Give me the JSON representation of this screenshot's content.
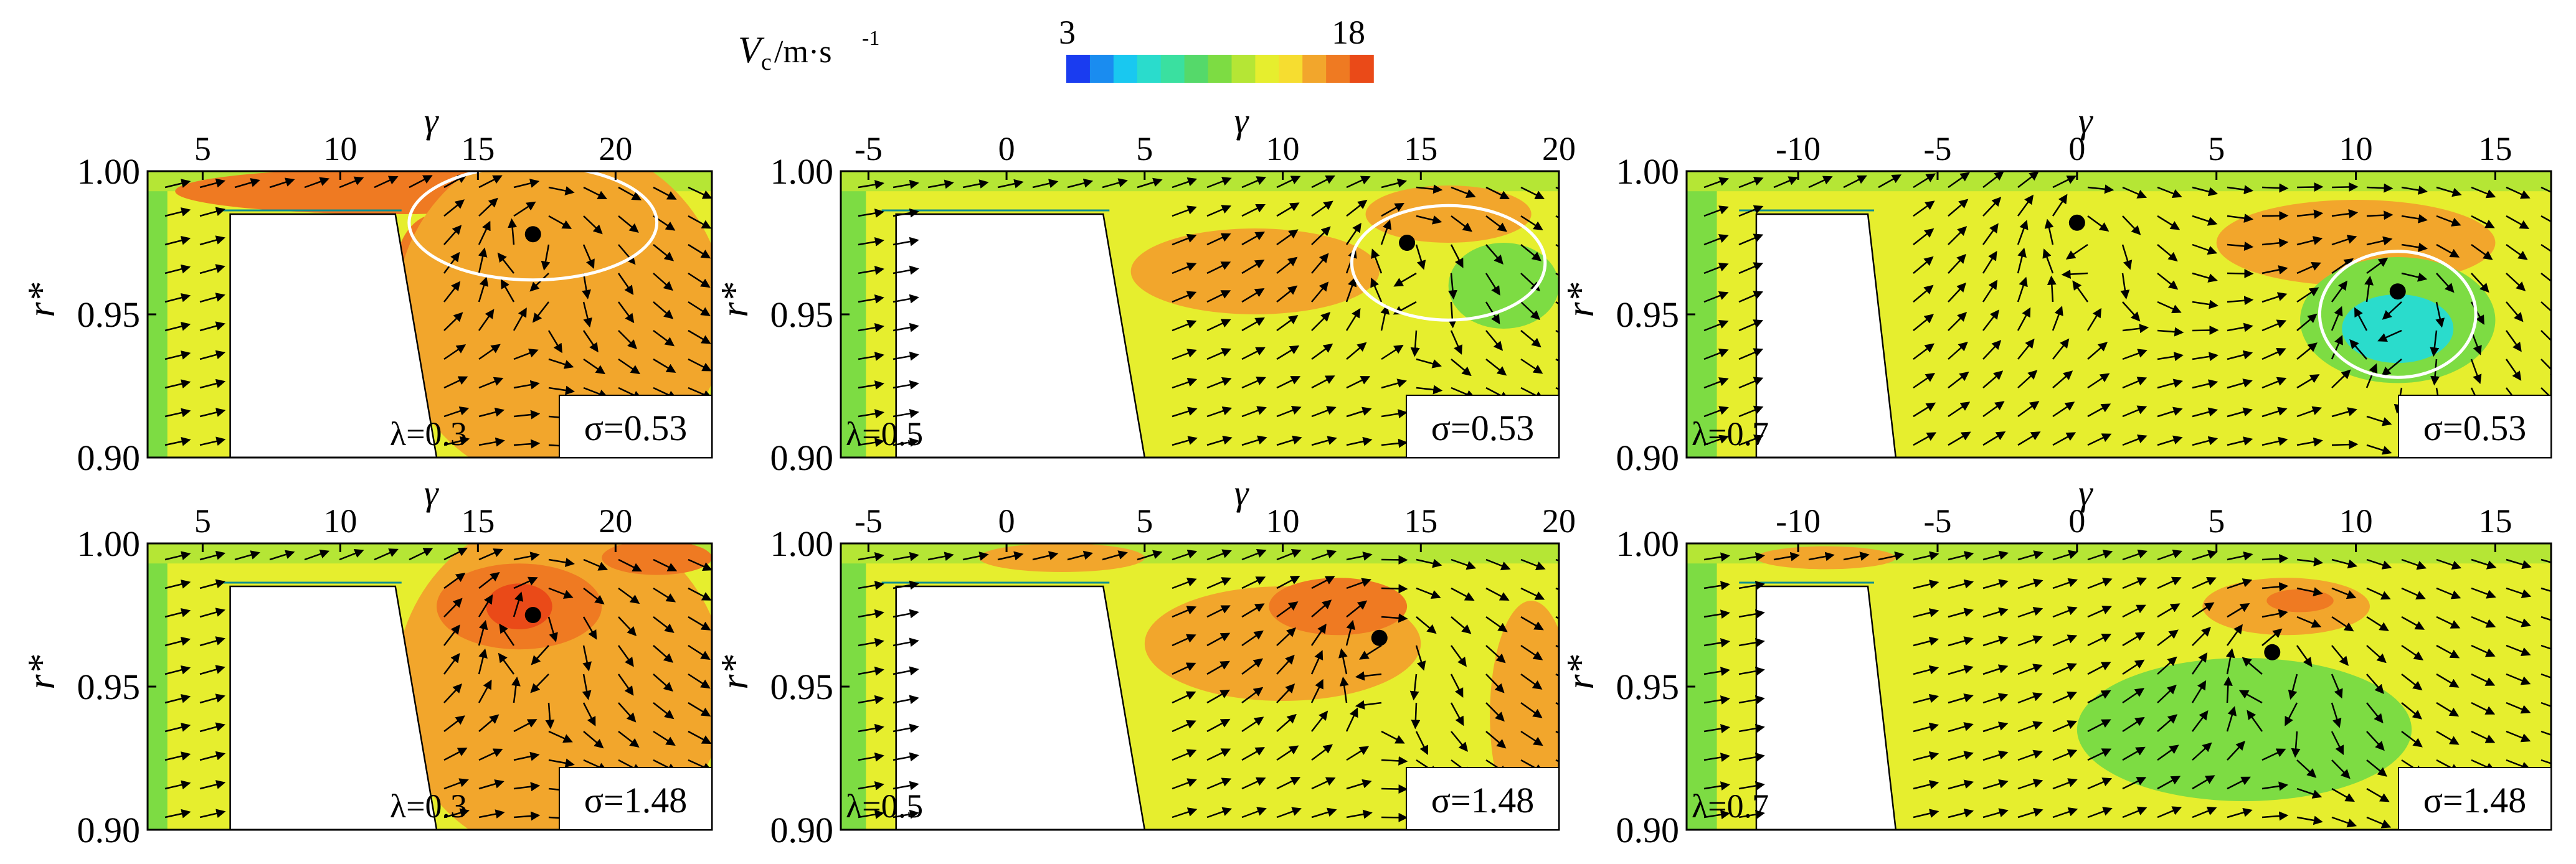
{
  "colorbar": {
    "label_main": "V",
    "label_sub": "c",
    "label_unit": "/m·s",
    "label_sup": "-1",
    "min_label": "3",
    "max_label": "18",
    "min": 3,
    "max": 18,
    "colors": [
      "#1a3cf0",
      "#1a8cf0",
      "#19c8f0",
      "#2adccc",
      "#3ae0a0",
      "#55d96a",
      "#7ddc43",
      "#b5e635",
      "#e6ee2e",
      "#f6dd30",
      "#f2a62c",
      "#ef7a22",
      "#ea4a18"
    ]
  },
  "chart_data": [
    {
      "type": "contour",
      "title": "",
      "xlabel": "γ",
      "ylabel": "r*",
      "xticks": [
        5,
        10,
        15,
        20
      ],
      "xlim": [
        3,
        23.5
      ],
      "ylim": [
        0.9,
        1.0
      ],
      "yticks": [
        "1.00",
        "0.95",
        "0.90"
      ],
      "lambda_label": "λ=0.3",
      "sigma_label": "σ=0.53",
      "vortex_center": [
        17,
        0.978
      ],
      "blade": {
        "x_left": 6,
        "x_top_right": 12,
        "x_bottom_right": 13.5,
        "y_top": 0.985
      },
      "velocity_regions": [
        {
          "level": 17,
          "cx": 12,
          "cy": 0.993,
          "rx": 8,
          "ry": 0.008
        },
        {
          "level": 17,
          "cx": 13.5,
          "cy": 0.965,
          "rx": 1.5,
          "ry": 0.02
        },
        {
          "level": 16,
          "cx": 18,
          "cy": 0.95,
          "rx": 6,
          "ry": 0.06
        }
      ],
      "white_contour": {
        "cx": 17,
        "cy": 0.982,
        "rx": 4.5,
        "ry": 0.02
      }
    },
    {
      "type": "contour",
      "title": "",
      "xlabel": "γ",
      "ylabel": "r*",
      "xticks": [
        -5,
        0,
        5,
        10,
        15,
        20
      ],
      "xlim": [
        -6,
        20
      ],
      "ylim": [
        0.9,
        1.0
      ],
      "yticks": [
        "1.00",
        "0.95",
        "0.90"
      ],
      "lambda_label": "λ=0.5",
      "sigma_label": "σ=0.53",
      "vortex_center": [
        14.5,
        0.975
      ],
      "blade": {
        "x_left": -4,
        "x_top_right": 3.5,
        "x_bottom_right": 5,
        "y_top": 0.985
      },
      "velocity_regions": [
        {
          "level": 16,
          "cx": 9,
          "cy": 0.965,
          "rx": 4.5,
          "ry": 0.015
        },
        {
          "level": 15,
          "cx": 16,
          "cy": 0.985,
          "rx": 3,
          "ry": 0.01
        },
        {
          "level": 11,
          "cx": 18,
          "cy": 0.96,
          "rx": 2,
          "ry": 0.015
        }
      ],
      "white_contour": {
        "cx": 16,
        "cy": 0.968,
        "rx": 3.5,
        "ry": 0.02
      }
    },
    {
      "type": "contour",
      "title": "",
      "xlabel": "γ",
      "ylabel": "r*",
      "xticks": [
        -10,
        -5,
        0,
        5,
        10,
        15
      ],
      "xlim": [
        -14,
        17
      ],
      "ylim": [
        0.9,
        1.0
      ],
      "yticks": [
        "1.00",
        "0.95",
        "0.90"
      ],
      "lambda_label": "λ=0.7",
      "sigma_label": "σ=0.53",
      "vortex_center": [
        [
          0,
          0.982
        ],
        [
          11.5,
          0.958
        ]
      ],
      "blade": {
        "x_left": -11.5,
        "x_top_right": -7.5,
        "x_bottom_right": -6.5,
        "y_top": 0.985
      },
      "velocity_regions": [
        {
          "level": 16,
          "cx": 10,
          "cy": 0.975,
          "rx": 5,
          "ry": 0.015
        },
        {
          "level": 10,
          "cx": 11.5,
          "cy": 0.948,
          "rx": 3.5,
          "ry": 0.022
        },
        {
          "level": 7,
          "cx": 11.5,
          "cy": 0.945,
          "rx": 2,
          "ry": 0.012
        }
      ],
      "white_contour": {
        "cx": 11.5,
        "cy": 0.95,
        "rx": 2.8,
        "ry": 0.022
      }
    },
    {
      "type": "contour",
      "title": "",
      "xlabel": "γ",
      "ylabel": "r*",
      "xticks": [
        5,
        10,
        15,
        20
      ],
      "xlim": [
        3,
        23.5
      ],
      "ylim": [
        0.9,
        1.0
      ],
      "yticks": [
        "1.00",
        "0.95",
        "0.90"
      ],
      "lambda_label": "λ=0.3",
      "sigma_label": "σ=1.48",
      "vortex_center": [
        17,
        0.975
      ],
      "blade": {
        "x_left": 6,
        "x_top_right": 12,
        "x_bottom_right": 13.5,
        "y_top": 0.985
      },
      "velocity_regions": [
        {
          "level": 16,
          "cx": 18,
          "cy": 0.95,
          "rx": 6,
          "ry": 0.06
        },
        {
          "level": 17,
          "cx": 16.5,
          "cy": 0.978,
          "rx": 3,
          "ry": 0.015
        },
        {
          "level": 18,
          "cx": 16.5,
          "cy": 0.978,
          "rx": 1.2,
          "ry": 0.008
        },
        {
          "level": 17,
          "cx": 21.5,
          "cy": 0.995,
          "rx": 2,
          "ry": 0.006
        }
      ],
      "white_contour": null
    },
    {
      "type": "contour",
      "title": "",
      "xlabel": "γ",
      "ylabel": "r*",
      "xticks": [
        -5,
        0,
        5,
        10,
        15,
        20
      ],
      "xlim": [
        -6,
        20
      ],
      "ylim": [
        0.9,
        1.0
      ],
      "yticks": [
        "1.00",
        "0.95",
        "0.90"
      ],
      "lambda_label": "λ=0.5",
      "sigma_label": "σ=1.48",
      "vortex_center": [
        13.5,
        0.967
      ],
      "blade": {
        "x_left": -4,
        "x_top_right": 3.5,
        "x_bottom_right": 5,
        "y_top": 0.985
      },
      "velocity_regions": [
        {
          "level": 16,
          "cx": 10,
          "cy": 0.965,
          "rx": 5,
          "ry": 0.02
        },
        {
          "level": 17,
          "cx": 12,
          "cy": 0.978,
          "rx": 2.5,
          "ry": 0.01
        },
        {
          "level": 16,
          "cx": 2,
          "cy": 0.995,
          "rx": 3,
          "ry": 0.005
        },
        {
          "level": 16,
          "cx": 19,
          "cy": 0.94,
          "rx": 1.5,
          "ry": 0.04
        }
      ],
      "white_contour": null
    },
    {
      "type": "contour",
      "title": "",
      "xlabel": "γ",
      "ylabel": "r*",
      "xticks": [
        -10,
        -5,
        0,
        5,
        10,
        15
      ],
      "xlim": [
        -14,
        17
      ],
      "ylim": [
        0.9,
        1.0
      ],
      "yticks": [
        "1.00",
        "0.95",
        "0.90"
      ],
      "lambda_label": "λ=0.7",
      "sigma_label": "σ=1.48",
      "vortex_center": [
        7,
        0.962
      ],
      "blade": {
        "x_left": -11.5,
        "x_top_right": -7.5,
        "x_bottom_right": -6.5,
        "y_top": 0.985
      },
      "velocity_regions": [
        {
          "level": 10,
          "cx": 6,
          "cy": 0.935,
          "rx": 6,
          "ry": 0.025
        },
        {
          "level": 16,
          "cx": 7.5,
          "cy": 0.978,
          "rx": 3,
          "ry": 0.01
        },
        {
          "level": 17,
          "cx": 8,
          "cy": 0.98,
          "rx": 1.2,
          "ry": 0.004
        },
        {
          "level": 16,
          "cx": -9,
          "cy": 0.995,
          "rx": 2.5,
          "ry": 0.004
        }
      ],
      "white_contour": null
    }
  ]
}
